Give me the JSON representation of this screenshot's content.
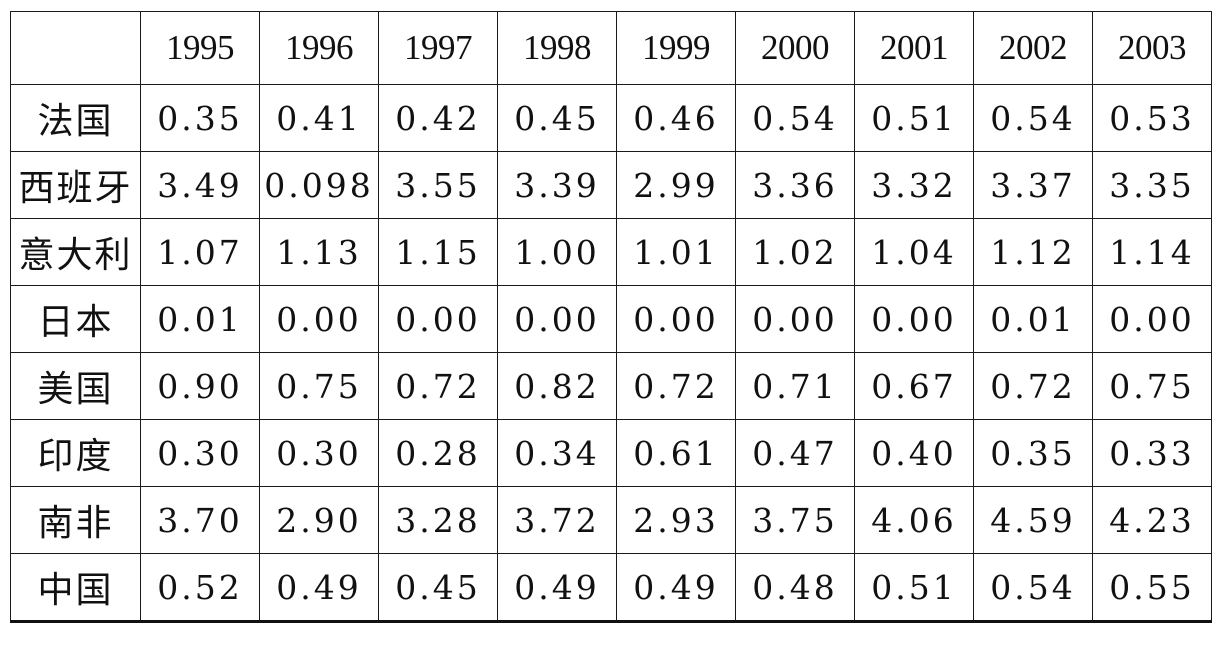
{
  "table": {
    "corner": "",
    "years": [
      "1995",
      "1996",
      "1997",
      "1998",
      "1999",
      "2000",
      "2001",
      "2002",
      "2003"
    ],
    "rows": [
      {
        "label": "法国",
        "values": [
          "0.35",
          "0.41",
          "0.42",
          "0.45",
          "0.46",
          "0.54",
          "0.51",
          "0.54",
          "0.53"
        ]
      },
      {
        "label": "西班牙",
        "values": [
          "3.49",
          "0.098",
          "3.55",
          "3.39",
          "2.99",
          "3.36",
          "3.32",
          "3.37",
          "3.35"
        ]
      },
      {
        "label": "意大利",
        "values": [
          "1.07",
          "1.13",
          "1.15",
          "1.00",
          "1.01",
          "1.02",
          "1.04",
          "1.12",
          "1.14"
        ]
      },
      {
        "label": "日本",
        "values": [
          "0.01",
          "0.00",
          "0.00",
          "0.00",
          "0.00",
          "0.00",
          "0.00",
          "0.01",
          "0.00"
        ]
      },
      {
        "label": "美国",
        "values": [
          "0.90",
          "0.75",
          "0.72",
          "0.82",
          "0.72",
          "0.71",
          "0.67",
          "0.72",
          "0.75"
        ]
      },
      {
        "label": "印度",
        "values": [
          "0.30",
          "0.30",
          "0.28",
          "0.34",
          "0.61",
          "0.47",
          "0.40",
          "0.35",
          "0.33"
        ]
      },
      {
        "label": "南非",
        "values": [
          "3.70",
          "2.90",
          "3.28",
          "3.72",
          "2.93",
          "3.75",
          "4.06",
          "4.59",
          "4.23"
        ]
      },
      {
        "label": "中国",
        "values": [
          "0.52",
          "0.49",
          "0.45",
          "0.49",
          "0.49",
          "0.48",
          "0.51",
          "0.54",
          "0.55"
        ]
      }
    ]
  }
}
